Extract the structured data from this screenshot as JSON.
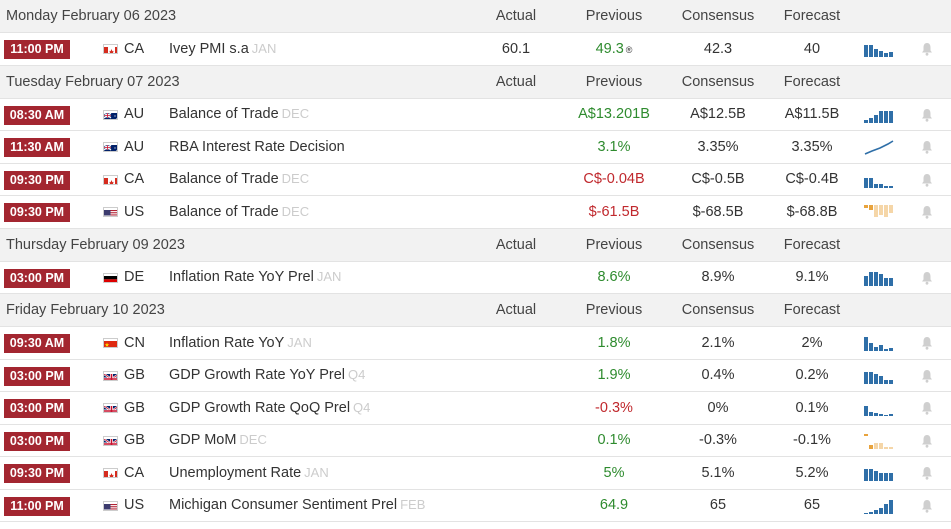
{
  "groups": [
    {
      "date": "Monday February 06 2023",
      "columns": {
        "actual": "Actual",
        "previous": "Previous",
        "consensus": "Consensus",
        "forecast": "Forecast"
      },
      "events": [
        {
          "time": "11:00 PM",
          "country": "CA",
          "flag": "ca",
          "name": "Ivey PMI s.a",
          "ref": "JAN",
          "actual": "60.1",
          "previous": "49.3",
          "previous_mark": "®",
          "previous_color": "green",
          "consensus": "42.3",
          "forecast": "40",
          "spark": "bars-blue-1"
        }
      ]
    },
    {
      "date": "Tuesday February 07 2023",
      "columns": {
        "actual": "Actual",
        "previous": "Previous",
        "consensus": "Consensus",
        "forecast": "Forecast"
      },
      "events": [
        {
          "time": "08:30 AM",
          "country": "AU",
          "flag": "au",
          "name": "Balance of Trade",
          "ref": "DEC",
          "actual": "",
          "previous": "A$13.201B",
          "previous_color": "green",
          "consensus": "A$12.5B",
          "forecast": "A$11.5B",
          "spark": "bars-blue-rise"
        },
        {
          "time": "11:30 AM",
          "country": "AU",
          "flag": "au",
          "name": "RBA Interest Rate Decision",
          "ref": "",
          "actual": "",
          "previous": "3.1%",
          "previous_color": "green",
          "consensus": "3.35%",
          "forecast": "3.35%",
          "spark": "line-blue"
        },
        {
          "time": "09:30 PM",
          "country": "CA",
          "flag": "ca",
          "name": "Balance of Trade",
          "ref": "DEC",
          "actual": "",
          "previous": "C$-0.04B",
          "previous_color": "red",
          "consensus": "C$-0.5B",
          "forecast": "C$-0.4B",
          "spark": "bars-blue-2"
        },
        {
          "time": "09:30 PM",
          "country": "US",
          "flag": "us",
          "name": "Balance of Trade",
          "ref": "DEC",
          "actual": "",
          "previous": "$-61.5B",
          "previous_color": "red",
          "consensus": "$-68.5B",
          "forecast": "$-68.8B",
          "spark": "bars-orange-neg"
        }
      ]
    },
    {
      "date": "Thursday February 09 2023",
      "columns": {
        "actual": "Actual",
        "previous": "Previous",
        "consensus": "Consensus",
        "forecast": "Forecast"
      },
      "events": [
        {
          "time": "03:00 PM",
          "country": "DE",
          "flag": "de",
          "name": "Inflation Rate YoY Prel",
          "ref": "JAN",
          "actual": "",
          "previous": "8.6%",
          "previous_color": "green",
          "consensus": "8.9%",
          "forecast": "9.1%",
          "spark": "bars-blue-3"
        }
      ]
    },
    {
      "date": "Friday February 10 2023",
      "columns": {
        "actual": "Actual",
        "previous": "Previous",
        "consensus": "Consensus",
        "forecast": "Forecast"
      },
      "events": [
        {
          "time": "09:30 AM",
          "country": "CN",
          "flag": "cn",
          "name": "Inflation Rate YoY",
          "ref": "JAN",
          "actual": "",
          "previous": "1.8%",
          "previous_color": "green",
          "consensus": "2.1%",
          "forecast": "2%",
          "spark": "bars-blue-4"
        },
        {
          "time": "03:00 PM",
          "country": "GB",
          "flag": "gb",
          "name": "GDP Growth Rate YoY Prel",
          "ref": "Q4",
          "actual": "",
          "previous": "1.9%",
          "previous_color": "green",
          "consensus": "0.4%",
          "forecast": "0.2%",
          "spark": "bars-blue-5"
        },
        {
          "time": "03:00 PM",
          "country": "GB",
          "flag": "gb",
          "name": "GDP Growth Rate QoQ Prel",
          "ref": "Q4",
          "actual": "",
          "previous": "-0.3%",
          "previous_color": "red",
          "consensus": "0%",
          "forecast": "0.1%",
          "spark": "bars-blue-6"
        },
        {
          "time": "03:00 PM",
          "country": "GB",
          "flag": "gb",
          "name": "GDP MoM",
          "ref": "DEC",
          "actual": "",
          "previous": "0.1%",
          "previous_color": "green",
          "consensus": "-0.3%",
          "forecast": "-0.1%",
          "spark": "bars-orange-mix"
        },
        {
          "time": "09:30 PM",
          "country": "CA",
          "flag": "ca",
          "name": "Unemployment Rate",
          "ref": "JAN",
          "actual": "",
          "previous": "5%",
          "previous_color": "green",
          "consensus": "5.1%",
          "forecast": "5.2%",
          "spark": "bars-blue-7"
        },
        {
          "time": "11:00 PM",
          "country": "US",
          "flag": "us",
          "name": "Michigan Consumer Sentiment Prel",
          "ref": "FEB",
          "actual": "",
          "previous": "64.9",
          "previous_color": "green",
          "consensus": "65",
          "forecast": "65",
          "spark": "bars-blue-rise2"
        }
      ]
    }
  ]
}
